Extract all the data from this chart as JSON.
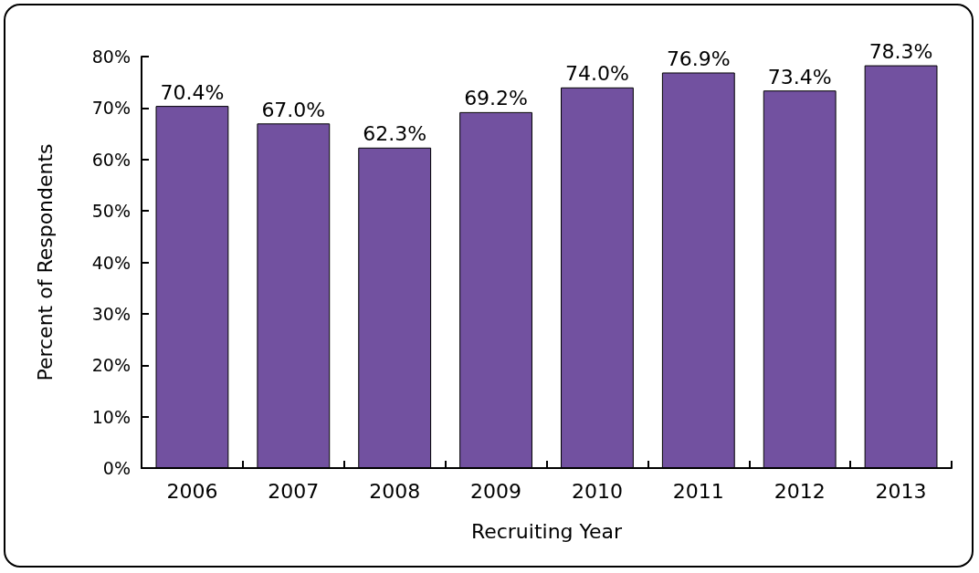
{
  "chart_data": {
    "type": "bar",
    "xlabel": "Recruiting Year",
    "ylabel": "Percent of Respondents",
    "categories": [
      "2006",
      "2007",
      "2008",
      "2009",
      "2010",
      "2011",
      "2012",
      "2013"
    ],
    "values": [
      70.4,
      67.0,
      62.3,
      69.2,
      74.0,
      76.9,
      73.4,
      78.3
    ],
    "value_labels": [
      "70.4%",
      "67.0%",
      "62.3%",
      "69.2%",
      "74.0%",
      "76.9%",
      "73.4%",
      "78.3%"
    ],
    "color": "#7251a0",
    "ylim": [
      0,
      80
    ],
    "yticks": [
      {
        "value": 0,
        "label": "0%"
      },
      {
        "value": 10,
        "label": "10%"
      },
      {
        "value": 20,
        "label": "20%"
      },
      {
        "value": 30,
        "label": "30%"
      },
      {
        "value": 40,
        "label": "40%"
      },
      {
        "value": 50,
        "label": "50%"
      },
      {
        "value": 60,
        "label": "60%"
      },
      {
        "value": 70,
        "label": "70%"
      },
      {
        "value": 80,
        "label": "80%"
      }
    ],
    "grid": false
  }
}
